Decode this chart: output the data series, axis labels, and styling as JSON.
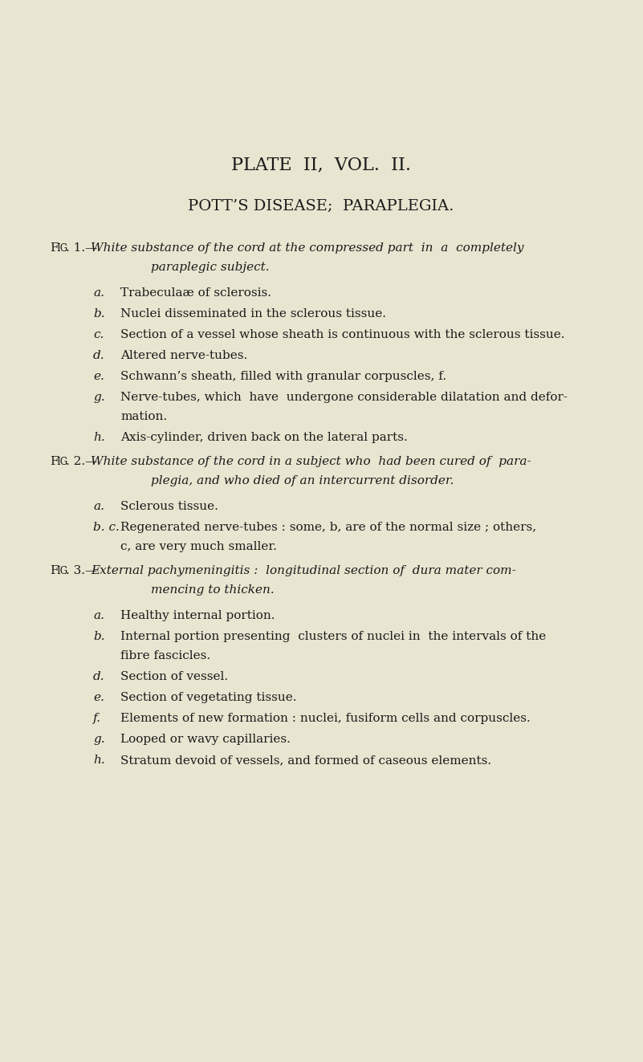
{
  "bg_color": "#e8e5d0",
  "text_color": "#1a1a1a",
  "page_title": "PLATE  II,  VOL.  II.",
  "page_subtitle": "POTT’S DISEASE;  PARAPLEGIA.",
  "fig1_header_italic": "White substance of the cord at the compressed part  in  a  completely",
  "fig1_header_italic2": "paraplegic subject.",
  "fig1_items": [
    [
      "a.",
      "Trabeculaæ of sclerosis."
    ],
    [
      "b.",
      "Nuclei disseminated in the sclerous tissue."
    ],
    [
      "c.",
      "Section of a vessel whose sheath is continuous with the sclerous tissue."
    ],
    [
      "d.",
      "Altered nerve-tubes."
    ],
    [
      "e.",
      "Schwann’s sheath, filled with granular corpuscles, f."
    ],
    [
      "g.",
      "Nerve-tubes, which  have  undergone considerable dilatation and defor-",
      "mation."
    ],
    [
      "h.",
      "Axis-cylinder, driven back on the lateral parts."
    ]
  ],
  "fig2_header_italic": "White substance of the cord in a subject who  had been cured of  para-",
  "fig2_header_italic2": "plegia, and who died of an intercurrent disorder.",
  "fig2_items": [
    [
      "a.",
      "Sclerous tissue."
    ],
    [
      "b. c.",
      "Regenerated nerve-tubes : some, b, are of the normal size ; others,",
      "c, are very much smaller."
    ]
  ],
  "fig3_header_italic": "External pachymeningitis :  longitudinal section of  dura mater com-",
  "fig3_header_italic2": "mencing to thicken.",
  "fig3_items": [
    [
      "a.",
      "Healthy internal portion."
    ],
    [
      "b.",
      "Internal portion presenting  clusters of nuclei in  the intervals of the",
      "fibre fascicles."
    ],
    [
      "d.",
      "Section of vessel."
    ],
    [
      "e.",
      "Section of vegetating tissue."
    ],
    [
      "f.",
      "Elements of new formation : nuclei, fusiform cells and corpuscles."
    ],
    [
      "g.",
      "Looped or wavy capillaries."
    ],
    [
      "h.",
      "Stratum devoid of vessels, and formed of caseous elements."
    ]
  ]
}
